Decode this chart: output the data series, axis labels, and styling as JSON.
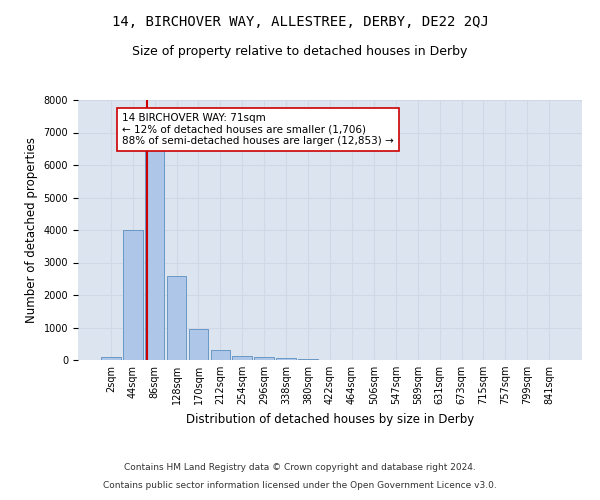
{
  "title_line1": "14, BIRCHOVER WAY, ALLESTREE, DERBY, DE22 2QJ",
  "title_line2": "Size of property relative to detached houses in Derby",
  "xlabel": "Distribution of detached houses by size in Derby",
  "ylabel": "Number of detached properties",
  "bar_labels": [
    "2sqm",
    "44sqm",
    "86sqm",
    "128sqm",
    "170sqm",
    "212sqm",
    "254sqm",
    "296sqm",
    "338sqm",
    "380sqm",
    "422sqm",
    "464sqm",
    "506sqm",
    "547sqm",
    "589sqm",
    "631sqm",
    "673sqm",
    "715sqm",
    "757sqm",
    "799sqm",
    "841sqm"
  ],
  "bar_values": [
    100,
    4000,
    6600,
    2600,
    950,
    300,
    120,
    100,
    55,
    30,
    15,
    10,
    8,
    5,
    4,
    3,
    2,
    2,
    1,
    1,
    1
  ],
  "bar_color": "#aec6e8",
  "bar_edgecolor": "#5a8fc0",
  "bar_width": 0.9,
  "vline_color": "#cc0000",
  "annotation_text": "14 BIRCHOVER WAY: 71sqm\n← 12% of detached houses are smaller (1,706)\n88% of semi-detached houses are larger (12,853) →",
  "annotation_box_color": "#ffffff",
  "annotation_box_edgecolor": "#cc0000",
  "ylim": [
    0,
    8000
  ],
  "yticks": [
    0,
    1000,
    2000,
    3000,
    4000,
    5000,
    6000,
    7000,
    8000
  ],
  "grid_color": "#d0d8e8",
  "background_color": "#dce4f0",
  "footer_line1": "Contains HM Land Registry data © Crown copyright and database right 2024.",
  "footer_line2": "Contains public sector information licensed under the Open Government Licence v3.0.",
  "title_fontsize": 10,
  "subtitle_fontsize": 9,
  "axis_label_fontsize": 8.5,
  "tick_fontsize": 7,
  "footer_fontsize": 6.5,
  "annotation_fontsize": 7.5
}
